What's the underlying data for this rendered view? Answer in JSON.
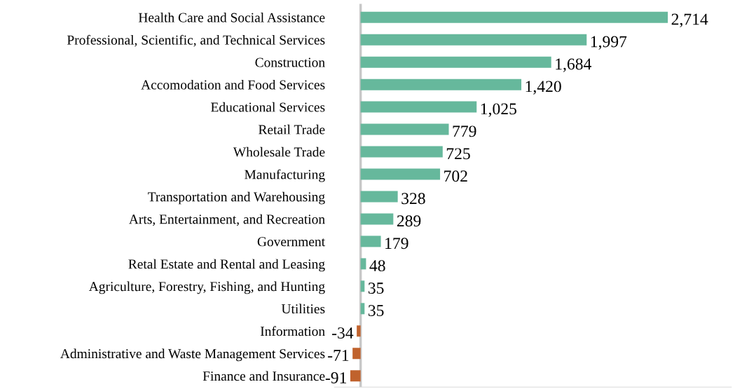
{
  "chart_data": {
    "type": "bar",
    "orientation": "horizontal",
    "categories": [
      "Health Care and Social Assistance",
      "Professional, Scientific, and Technical Services",
      "Construction",
      "Accomodation and Food Services",
      "Educational Services",
      "Retail Trade",
      "Wholesale Trade",
      "Manufacturing",
      "Transportation and Warehousing",
      "Arts, Entertainment, and Recreation",
      "Government",
      "Retal Estate and Rental and Leasing",
      "Agriculture, Forestry, Fishing, and Hunting",
      "Utilities",
      "Information",
      "Administrative and Waste Management Services",
      "Finance and Insurance"
    ],
    "values": [
      2714,
      1997,
      1684,
      1420,
      1025,
      779,
      725,
      702,
      328,
      289,
      179,
      48,
      35,
      35,
      -34,
      -71,
      -91
    ],
    "value_labels": [
      "2,714",
      "1,997",
      "1,684",
      "1,420",
      "1,025",
      "779",
      "725",
      "702",
      "328",
      "289",
      "179",
      "48",
      "35",
      "35",
      "-34",
      "-71",
      "-91"
    ],
    "colors": [
      "#66b89c",
      "#66b89c",
      "#66b89c",
      "#66b89c",
      "#66b89c",
      "#66b89c",
      "#66b89c",
      "#66b89c",
      "#66b89c",
      "#66b89c",
      "#66b89c",
      "#66b89c",
      "#66b89c",
      "#66b89c",
      "#c0622d",
      "#c0622d",
      "#c0622d"
    ],
    "tick_labels": "y",
    "grid": false,
    "legend": false
  }
}
